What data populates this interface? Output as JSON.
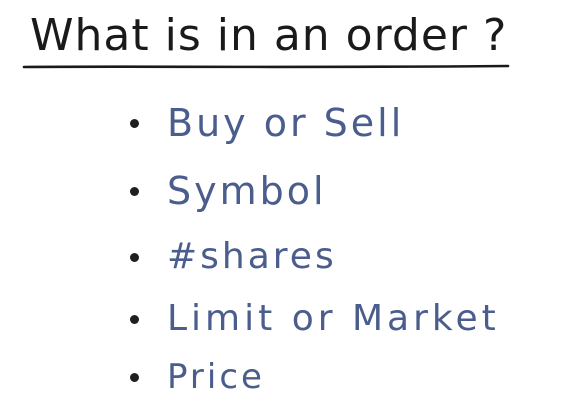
{
  "title": "What is in an order ?",
  "colors": {
    "background": "#ffffff",
    "title_ink": "#1a1a1a",
    "item_ink": "#4a5d8c",
    "bullet_ink": "#1f1f1f"
  },
  "items": [
    {
      "label": "Buy or Sell"
    },
    {
      "label": "Symbol"
    },
    {
      "label": "#shares"
    },
    {
      "label": "Limit or Market"
    },
    {
      "label": "Price"
    }
  ]
}
